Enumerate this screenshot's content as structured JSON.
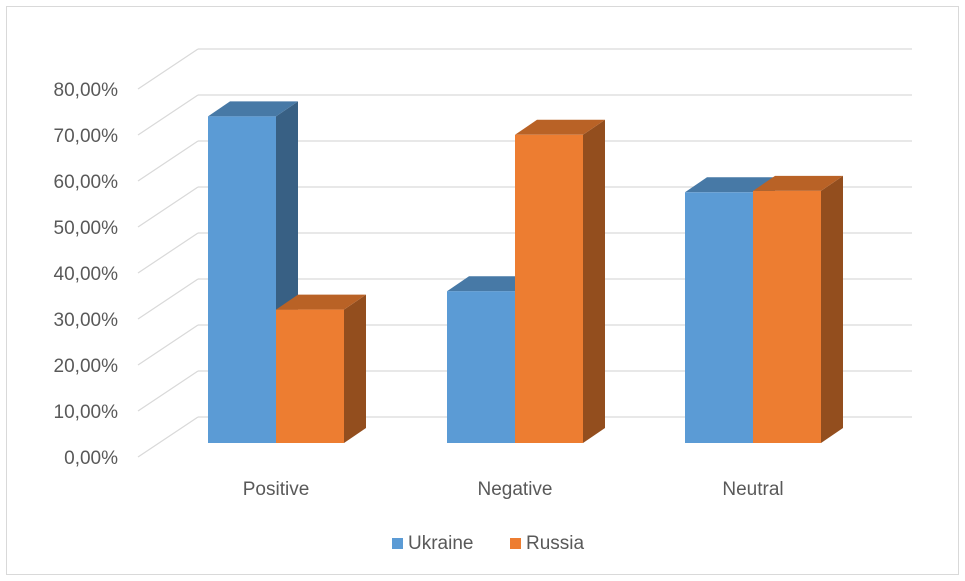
{
  "chart_data": {
    "type": "bar",
    "style": "3d-clustered-column",
    "categories": [
      "Positive",
      "Negative",
      "Neutral"
    ],
    "series": [
      {
        "name": "Ukraine",
        "values": [
          71.0,
          33.0,
          54.5
        ],
        "color": "#5b9bd5"
      },
      {
        "name": "Russia",
        "values": [
          29.0,
          67.0,
          54.8
        ],
        "color": "#ed7d31"
      }
    ],
    "yticks": [
      "0,00%",
      "10,00%",
      "20,00%",
      "30,00%",
      "40,00%",
      "50,00%",
      "60,00%",
      "70,00%",
      "80,00%"
    ],
    "ylim": [
      0,
      90
    ],
    "grid": true,
    "legend": "bottom"
  }
}
